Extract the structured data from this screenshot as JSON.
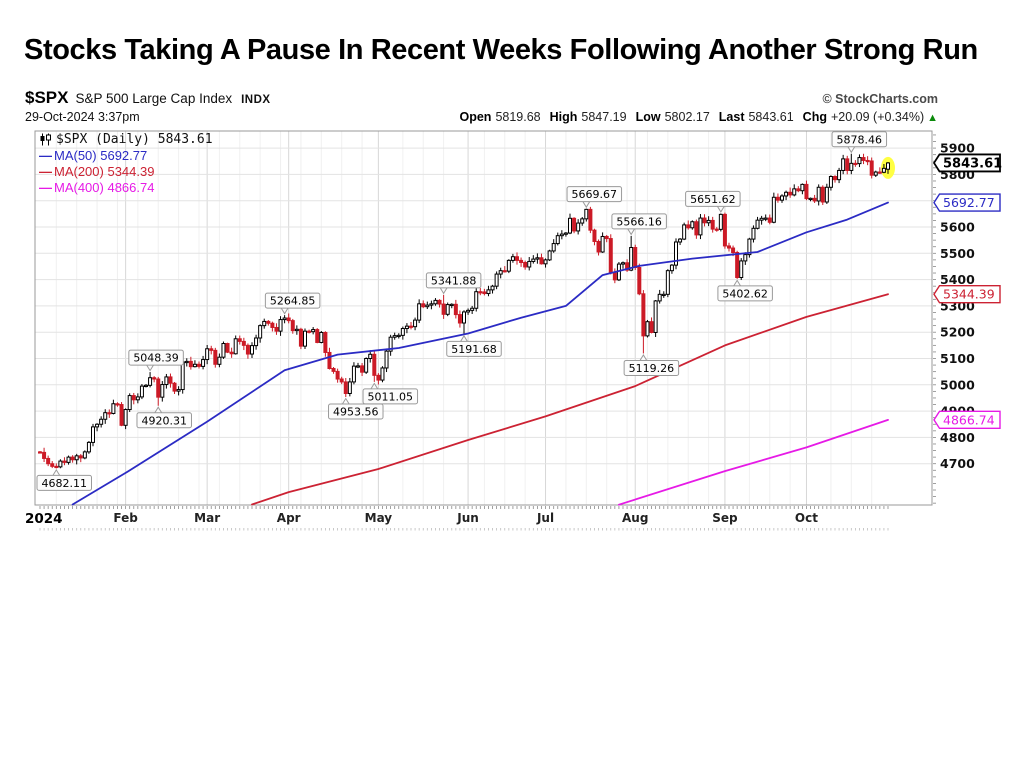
{
  "page": {
    "title": "Stocks Taking A Pause In Recent Weeks Following Another Strong Run"
  },
  "header": {
    "symbol": "$SPX",
    "name": "S&P 500 Large Cap Index",
    "exchange": "INDX",
    "datetime": "29-Oct-2024 3:37pm",
    "attribution": "© StockCharts.com",
    "quote": [
      {
        "label": "Open",
        "value": "5819.68"
      },
      {
        "label": "High",
        "value": "5847.19"
      },
      {
        "label": "Low",
        "value": "5802.17"
      },
      {
        "label": "Last",
        "value": "5843.61"
      },
      {
        "label": "Chg",
        "value": "+20.09 (+0.34%)"
      }
    ],
    "change_direction": "up",
    "up_arrow_glyph": "▲"
  },
  "legend": {
    "main": "$SPX (Daily) 5843.61",
    "items": [
      {
        "label": "MA(50) 5692.77",
        "color": "#2b2bc4"
      },
      {
        "label": "MA(200) 5344.39",
        "color": "#cc2233"
      },
      {
        "label": "MA(400) 4866.74",
        "color": "#e61ae6"
      }
    ]
  },
  "chart_data": {
    "type": "candlestick",
    "title": "$SPX S&P 500 Large Cap Index (Daily)",
    "as_of": "29-Oct-2024 3:37pm",
    "last": 5843.61,
    "ohlc_last": {
      "open": 5819.68,
      "high": 5847.19,
      "low": 5802.17,
      "close": 5843.61,
      "change": "+20.09 (+0.34%)"
    },
    "ylim": [
      4543,
      5965
    ],
    "y_ticks": [
      4700,
      4800,
      4900,
      5000,
      5100,
      5200,
      5300,
      5400,
      5500,
      5600,
      5700,
      5800,
      5900
    ],
    "year_label": "2024",
    "x_months": [
      {
        "label": "Feb",
        "day": 21
      },
      {
        "label": "Mar",
        "day": 41
      },
      {
        "label": "Apr",
        "day": 61
      },
      {
        "label": "May",
        "day": 83
      },
      {
        "label": "Jun",
        "day": 105
      },
      {
        "label": "Jul",
        "day": 124
      },
      {
        "label": "Aug",
        "day": 146
      },
      {
        "label": "Sep",
        "day": 168
      },
      {
        "label": "Oct",
        "day": 188
      }
    ],
    "first_open": 4745,
    "closes": [
      4743,
      4720,
      4700,
      4690,
      4688,
      4710,
      4705,
      4725,
      4715,
      4730,
      4722,
      4745,
      4781,
      4840,
      4850,
      4869,
      4894,
      4891,
      4928,
      4925,
      4846,
      4906,
      4959,
      4943,
      4954,
      4995,
      4998,
      5027,
      5022,
      4953,
      5001,
      5030,
      5006,
      4976,
      4982,
      5087,
      5089,
      5069,
      5078,
      5070,
      5096,
      5137,
      5131,
      5078,
      5105,
      5157,
      5124,
      5118,
      5175,
      5165,
      5150,
      5117,
      5149,
      5178,
      5225,
      5241,
      5234,
      5218,
      5204,
      5248,
      5254,
      5244,
      5206,
      5211,
      5147,
      5204,
      5202,
      5210,
      5161,
      5199,
      5123,
      5062,
      5051,
      5022,
      5011,
      4967,
      5011,
      5071,
      5072,
      5048,
      5100,
      5116,
      5036,
      5018,
      5064,
      5128,
      5181,
      5187,
      5188,
      5214,
      5223,
      5221,
      5246,
      5308,
      5297,
      5303,
      5308,
      5321,
      5307,
      5268,
      5305,
      5306,
      5267,
      5235,
      5277,
      5283,
      5291,
      5354,
      5353,
      5347,
      5361,
      5375,
      5421,
      5434,
      5432,
      5473,
      5487,
      5473,
      5465,
      5448,
      5469,
      5478,
      5483,
      5460,
      5475,
      5509,
      5537,
      5567,
      5573,
      5577,
      5633,
      5585,
      5615,
      5631,
      5667,
      5588,
      5545,
      5505,
      5564,
      5556,
      5427,
      5399,
      5459,
      5464,
      5436,
      5522,
      5446,
      5346,
      5186,
      5240,
      5199,
      5319,
      5344,
      5344,
      5434,
      5455,
      5543,
      5554,
      5608,
      5597,
      5620,
      5570,
      5634,
      5616,
      5625,
      5592,
      5591,
      5648,
      5528,
      5520,
      5503,
      5408,
      5471,
      5495,
      5554,
      5595,
      5626,
      5633,
      5634,
      5618,
      5713,
      5702,
      5718,
      5732,
      5722,
      5745,
      5738,
      5762,
      5708,
      5709,
      5699,
      5751,
      5695,
      5751,
      5792,
      5780,
      5815,
      5859,
      5815,
      5842,
      5841,
      5864,
      5853,
      5851,
      5797,
      5809,
      5808,
      5823,
      5843.61
    ],
    "key_candles": {
      "4": {
        "low": 4682.11
      },
      "27": {
        "high": 5048.39
      },
      "29": {
        "low": 4920.31
      },
      "60": {
        "high": 5264.85
      },
      "75": {
        "low": 4953.56
      },
      "82": {
        "low": 5011.05
      },
      "99": {
        "high": 5341.88
      },
      "104": {
        "low": 5191.68
      },
      "134": {
        "high": 5669.67
      },
      "145": {
        "high": 5566.16
      },
      "148": {
        "low": 5119.26
      },
      "167": {
        "high": 5651.62
      },
      "171": {
        "low": 5402.62
      },
      "199": {
        "high": 5878.46
      },
      "208": {
        "open": 5819.68,
        "high": 5847.19,
        "low": 5802.17,
        "close": 5843.61
      }
    },
    "annotations": [
      {
        "label": "4682.11",
        "day": 4,
        "price": 4682.11,
        "side": "below",
        "dx": -8
      },
      {
        "label": "5048.39",
        "day": 27,
        "price": 5048.39,
        "side": "above",
        "dx": 6
      },
      {
        "label": "4920.31",
        "day": 29,
        "price": 4920.31,
        "side": "below",
        "dx": 6
      },
      {
        "label": "5264.85",
        "day": 60,
        "price": 5264.85,
        "side": "above",
        "dx": 8
      },
      {
        "label": "4953.56",
        "day": 75,
        "price": 4953.56,
        "side": "below",
        "dx": 10
      },
      {
        "label": "5011.05",
        "day": 82,
        "price": 5011.05,
        "side": "below",
        "dx": 16
      },
      {
        "label": "5341.88",
        "day": 99,
        "price": 5341.88,
        "side": "above",
        "dx": 10
      },
      {
        "label": "5191.68",
        "day": 104,
        "price": 5191.68,
        "side": "below",
        "dx": 10
      },
      {
        "label": "5669.67",
        "day": 134,
        "price": 5669.67,
        "side": "above",
        "dx": 8
      },
      {
        "label": "5566.16",
        "day": 145,
        "price": 5566.16,
        "side": "above",
        "dx": 8
      },
      {
        "label": "5119.26",
        "day": 148,
        "price": 5119.26,
        "side": "below",
        "dx": 8
      },
      {
        "label": "5651.62",
        "day": 167,
        "price": 5651.62,
        "side": "above",
        "dx": -8
      },
      {
        "label": "5402.62",
        "day": 171,
        "price": 5402.62,
        "side": "below",
        "dx": 8
      },
      {
        "label": "5878.46",
        "day": 199,
        "price": 5878.46,
        "side": "above",
        "dx": 8
      }
    ],
    "ma_lines": [
      {
        "name": "MA(50)",
        "value": 5692.77,
        "color": "#2b2bc4",
        "points": [
          [
            8,
            4545
          ],
          [
            21,
            4665
          ],
          [
            41,
            4860
          ],
          [
            60,
            5055
          ],
          [
            73,
            5115
          ],
          [
            88,
            5140
          ],
          [
            105,
            5195
          ],
          [
            118,
            5255
          ],
          [
            129,
            5300
          ],
          [
            138,
            5417
          ],
          [
            147,
            5452
          ],
          [
            160,
            5480
          ],
          [
            176,
            5505
          ],
          [
            188,
            5580
          ],
          [
            198,
            5628
          ],
          [
            208,
            5692.77
          ]
        ]
      },
      {
        "name": "MA(200)",
        "value": 5344.39,
        "color": "#cc2233",
        "points": [
          [
            52,
            4545
          ],
          [
            61,
            4592
          ],
          [
            83,
            4680
          ],
          [
            105,
            4790
          ],
          [
            124,
            4880
          ],
          [
            146,
            4995
          ],
          [
            168,
            5150
          ],
          [
            188,
            5258
          ],
          [
            208,
            5344.39
          ]
        ]
      },
      {
        "name": "MA(400)",
        "value": 4866.74,
        "color": "#e61ae6",
        "points": [
          [
            142,
            4544
          ],
          [
            168,
            4672
          ],
          [
            188,
            4762
          ],
          [
            208,
            4866.74
          ]
        ]
      }
    ],
    "price_tags": [
      {
        "text": "5843.61",
        "price": 5843.61,
        "color": "#000000",
        "bold": true
      },
      {
        "text": "5692.77",
        "price": 5692.77,
        "color": "#2b2bc4",
        "bold": false
      },
      {
        "text": "5344.39",
        "price": 5344.39,
        "color": "#cc2233",
        "bold": false
      },
      {
        "text": "4866.74",
        "price": 4866.74,
        "color": "#e61ae6",
        "bold": false
      }
    ],
    "colors": {
      "candle_up": "#000000",
      "candle_down": "#cc1a26",
      "grid": "#e3e3e3",
      "month_grid": "#d7d7d7",
      "week_grid": "#f0f0f0",
      "frame": "#999999",
      "highlight": "#ffff42",
      "axis_text": "#111111"
    }
  }
}
